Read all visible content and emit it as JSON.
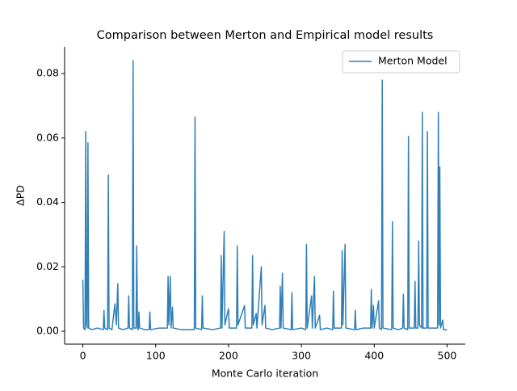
{
  "chart_data": {
    "type": "line",
    "title": "Comparison between Merton and Empirical model results",
    "x_label": "Monte Carlo iteration",
    "y_label": "ΔPD",
    "legend": "upper right",
    "xlim": [
      -25,
      525
    ],
    "ylim": [
      -0.004,
      0.0883
    ],
    "xticks": [
      0,
      100,
      200,
      300,
      400,
      500
    ],
    "yticks": [
      {
        "value": 0,
        "label": "0.00"
      },
      {
        "value": 0.02,
        "label": "0.02"
      },
      {
        "value": 0.04,
        "label": "0.04"
      },
      {
        "value": 0.06,
        "label": "0.06"
      },
      {
        "value": 0.08,
        "label": "0.08"
      }
    ],
    "x": [
      0,
      1,
      3,
      4,
      5,
      6,
      7,
      8,
      12,
      20,
      28,
      29,
      30,
      34,
      35,
      36,
      40,
      44,
      46,
      48,
      49,
      55,
      62,
      63,
      64,
      68,
      69,
      70,
      73,
      74,
      75,
      76,
      77,
      78,
      85,
      91,
      92,
      93,
      105,
      116,
      117,
      118,
      120,
      121,
      123,
      124,
      135,
      153,
      154,
      155,
      163,
      164,
      165,
      178,
      189,
      190,
      191,
      194,
      195,
      200,
      201,
      211,
      212,
      213,
      222,
      223,
      232,
      233,
      234,
      238,
      239,
      245,
      246,
      250,
      251,
      260,
      270,
      271,
      272,
      274,
      275,
      286,
      287,
      288,
      300,
      306,
      307,
      308,
      314,
      315,
      318,
      319,
      325,
      326,
      335,
      343,
      344,
      345,
      355,
      356,
      357,
      360,
      361,
      373,
      374,
      375,
      385,
      395,
      396,
      397,
      399,
      400,
      406,
      407,
      410,
      411,
      412,
      424,
      425,
      426,
      433,
      439,
      440,
      441,
      446,
      447,
      448,
      455,
      456,
      457,
      460,
      461,
      462,
      465,
      466,
      467,
      472,
      473,
      474,
      487,
      488,
      489,
      490,
      491,
      494,
      495,
      498,
      500
    ],
    "series": [
      {
        "name": "Merton Model",
        "color": "#2f7fb8",
        "values": [
          0.016,
          0.001,
          0.0005,
          0.062,
          0.002,
          0.001,
          0.0585,
          0.001,
          0.0005,
          0.001,
          0.0005,
          0.0065,
          0.001,
          0.0005,
          0.0485,
          0.001,
          0.0005,
          0.0085,
          0.002,
          0.0148,
          0.001,
          0.0005,
          0.001,
          0.011,
          0.001,
          0.0005,
          0.084,
          0.001,
          0.001,
          0.0265,
          0.001,
          0.0005,
          0.006,
          0.001,
          0.0005,
          0.0005,
          0.006,
          0.0005,
          0.001,
          0.001,
          0.017,
          0.002,
          0.017,
          0.001,
          0.0075,
          0.001,
          0.0005,
          0.0005,
          0.0665,
          0.001,
          0.0005,
          0.011,
          0.001,
          0.0005,
          0.001,
          0.0235,
          0.001,
          0.031,
          0.002,
          0.007,
          0.001,
          0.001,
          0.0265,
          0.002,
          0.008,
          0.001,
          0.001,
          0.0235,
          0.002,
          0.0055,
          0.001,
          0.02,
          0.002,
          0.008,
          0.001,
          0.0005,
          0.001,
          0.014,
          0.001,
          0.018,
          0.001,
          0.0005,
          0.012,
          0.0005,
          0.001,
          0.0005,
          0.027,
          0.001,
          0.011,
          0.001,
          0.017,
          0.001,
          0.005,
          0.0005,
          0.001,
          0.0005,
          0.0125,
          0.001,
          0.001,
          0.025,
          0.002,
          0.027,
          0.001,
          0.0005,
          0.0065,
          0.0005,
          0.001,
          0.001,
          0.013,
          0.001,
          0.008,
          0.001,
          0.0095,
          0.001,
          0.0005,
          0.078,
          0.001,
          0.0005,
          0.034,
          0.001,
          0.0005,
          0.001,
          0.0115,
          0.001,
          0.0005,
          0.0605,
          0.001,
          0.001,
          0.0155,
          0.001,
          0.001,
          0.028,
          0.002,
          0.001,
          0.068,
          0.001,
          0.001,
          0.062,
          0.001,
          0.001,
          0.068,
          0.002,
          0.051,
          0.001,
          0.0035,
          0.0005,
          0.0005,
          0.0003
        ]
      }
    ]
  }
}
